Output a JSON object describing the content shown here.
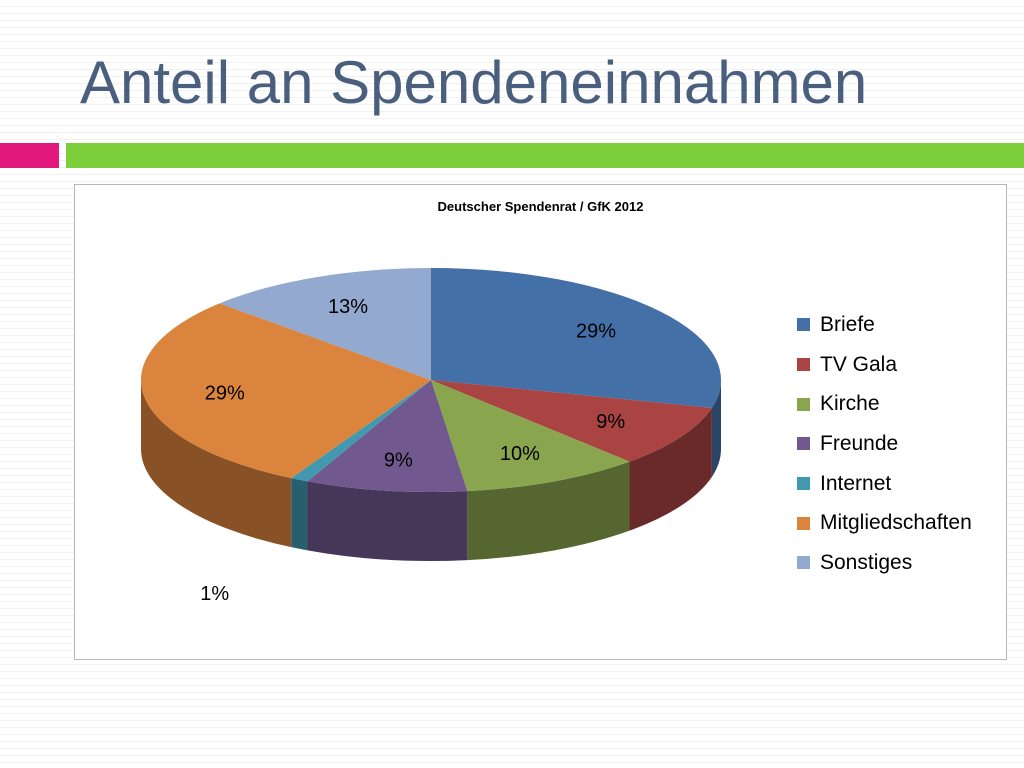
{
  "slide": {
    "title": "Anteil an Spendeneinnahmen",
    "accent_colors": {
      "pink": "#e2187c",
      "green": "#7ccf3a"
    }
  },
  "chart_data": {
    "type": "pie",
    "title": "Deutscher Spendenrat / GfK 2012",
    "three_d": true,
    "legend_position": "right",
    "unit": "%",
    "series": [
      {
        "categories": [
          "Briefe",
          "TV Gala",
          "Kirche",
          "Freunde",
          "Internet",
          "Mitgliedschaften",
          "Sonstiges"
        ],
        "values": [
          29,
          9,
          10,
          9,
          1,
          29,
          13
        ],
        "colors": [
          "#4470a8",
          "#a94442",
          "#89a54e",
          "#71588f",
          "#4198af",
          "#db843d",
          "#93a9cf"
        ],
        "labels": [
          "29%",
          "9%",
          "10%",
          "9%",
          "1%",
          "29%",
          "13%"
        ]
      }
    ]
  }
}
